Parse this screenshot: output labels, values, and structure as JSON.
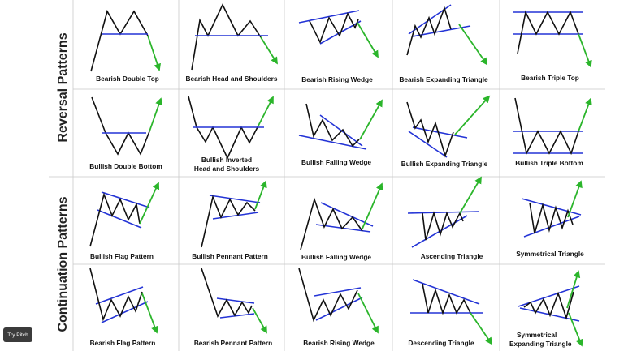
{
  "sections": {
    "reversal": "Reversal Patterns",
    "continuation": "Continuation Patterns"
  },
  "cells": [
    "Bearish Double Top",
    "Bearish Head and Shoulders",
    "Bearish Rising Wedge",
    "Bearish Expanding Triangle",
    "Bearish Triple Top",
    "Bullish Double Bottom",
    "Bullish Inverted",
    "Head and Shoulders",
    "Bullish Falling Wedge",
    "Bullish Expanding Triangle",
    "Bullish Triple Bottom",
    "Bullish Flag Pattern",
    "Bullish Pennant Pattern",
    "Bullish Falling Wedge",
    "Ascending Triangle",
    "Symmetrical Triangle",
    "Bearish Flag Pattern",
    "Bearish Pennant Pattern",
    "Bearish Rising Wedge",
    "Descending Triangle",
    "Symmetrical",
    "Expanding Triangle"
  ],
  "button": "Try Pitch",
  "colors": {
    "price": "#111111",
    "trendline": "#2434d6",
    "breakout": "#2bb52b"
  }
}
